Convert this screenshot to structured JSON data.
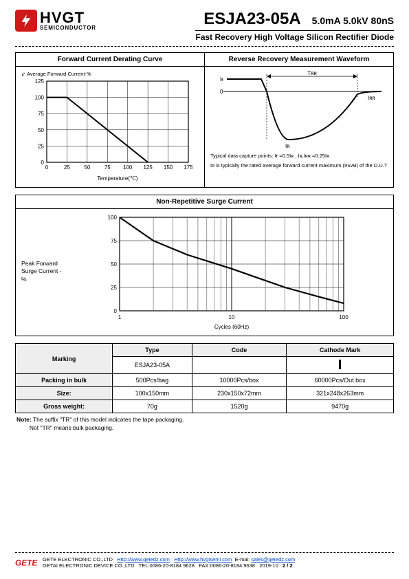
{
  "header": {
    "logo_main": "HVGT",
    "logo_sub": "SEMICONDUCTOR",
    "part_no": "ESJA23-05A",
    "specs": "5.0mA 5.0kV 80nS",
    "subtitle": "Fast Recovery High Voltage Silicon Rectifier Diode"
  },
  "chart1": {
    "title": "Forward Current Derating Curve",
    "legend": "Average Forward Current-%",
    "xlabel": "Temperature(℃)",
    "xticks": [
      "0",
      "25",
      "50",
      "75",
      "100",
      "125",
      "150",
      "175"
    ],
    "yticks": [
      "0",
      "25",
      "50",
      "75",
      "100",
      "125"
    ],
    "data_x": [
      0,
      25,
      125
    ],
    "data_y": [
      100,
      100,
      0
    ],
    "line_color": "#000000",
    "grid_color": "#000000",
    "xlim": [
      0,
      175
    ],
    "ylim": [
      0,
      125
    ]
  },
  "chart2": {
    "title": "Reverse Recovery Measurement Waveform",
    "labels": {
      "IF": "Iғ",
      "zero": "0",
      "IR": "Iʀ",
      "IRR": "Iʀʀ",
      "TRR": "Tʀʀ"
    },
    "caption1": "Typical data capture points: Iғ =0.5Iʀ , Iʀ,Iʀʀ =0.25Iʀ",
    "caption2": "Iʀ is typically the rated average forward current maximum (Iғᴀᴠᴍ) of the D.U.T"
  },
  "chart3": {
    "title": "Non-Repetitive Surge Current",
    "ylabel": "Peak Forward Surge Current -%",
    "xlabel": "Cycles (60Hz)",
    "xticks": [
      "1",
      "10",
      "100"
    ],
    "yticks": [
      "0",
      "25",
      "50",
      "75",
      "100"
    ],
    "xlim_log": [
      1,
      100
    ],
    "ylim": [
      0,
      100
    ],
    "line_color": "#000000",
    "grid_color": "#000000",
    "data_points": [
      [
        1,
        100
      ],
      [
        2,
        75
      ],
      [
        4,
        60
      ],
      [
        10,
        45
      ],
      [
        30,
        25
      ],
      [
        60,
        15
      ],
      [
        100,
        8
      ]
    ]
  },
  "marking_table": {
    "header_row": [
      "",
      "Type",
      "Code",
      "Cathode Mark"
    ],
    "marking_label": "Marking",
    "data_rows": [
      [
        "",
        "ESJA23-05A",
        "",
        "__CATHODE__"
      ],
      [
        "Packing in bulk",
        "500Pcs/bag",
        "10000Pcs/box",
        "60000Pcs/Out box"
      ],
      [
        "Size:",
        "100x150mm",
        "230x150x72mm",
        "321x248x263mm"
      ],
      [
        "Gross weight:",
        "70g",
        "1520g",
        "9470g"
      ]
    ]
  },
  "notes": {
    "label": "Note:",
    "line1": "The suffix \"TR\" of this model indicates the tape packaging.",
    "line2": "Not \"TR\" means bulk packaging."
  },
  "footer": {
    "company1": "GETE ELECTRONIC CO.,LTD",
    "url1": "Http://www.getedz.com",
    "url2": "Http://www.hvgtsemi.com",
    "email_label": "E-mai:",
    "email": "sales@getedz.com",
    "company2": "GETAI ELECTRONIC DEVICE CO.,LTD",
    "tel": "TEL:0086-20-8184 9628",
    "fax": "FAX:0086-20-8184 9638",
    "date": "2019-10",
    "page": "2 / 2"
  }
}
